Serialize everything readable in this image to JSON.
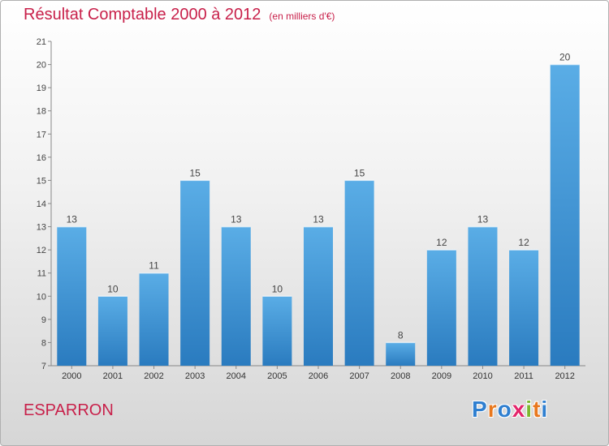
{
  "title": "Résultat Comptable 2000 à 2012",
  "subtitle": "(en milliers d'€)",
  "commune": "ESPARRON",
  "logo": {
    "letters": [
      {
        "char": "P",
        "color": "#2f7fd0"
      },
      {
        "char": "r",
        "color": "#e8781e"
      },
      {
        "char": "o",
        "color": "#2f7fd0"
      },
      {
        "char": "x",
        "color": "#e3256b"
      },
      {
        "char": "i",
        "color": "#7cb82f"
      },
      {
        "char": "t",
        "color": "#e8781e"
      },
      {
        "char": "i",
        "color": "#2f7fd0"
      }
    ]
  },
  "colors": {
    "accent": "#c8204a",
    "bar_top": "#5aade6",
    "bar_bottom": "#2a7bbf"
  },
  "chart_data": {
    "type": "bar",
    "title": "Résultat Comptable 2000 à 2012",
    "subtitle": "(en milliers d'€)",
    "xlabel": "",
    "ylabel": "",
    "categories": [
      "2000",
      "2001",
      "2002",
      "2003",
      "2004",
      "2005",
      "2006",
      "2007",
      "2008",
      "2009",
      "2010",
      "2011",
      "2012"
    ],
    "values": [
      13,
      10,
      11,
      15,
      13,
      10,
      13,
      15,
      8,
      12,
      13,
      12,
      20
    ],
    "ylim": [
      7,
      21
    ],
    "yticks": [
      7,
      8,
      9,
      10,
      11,
      12,
      13,
      14,
      15,
      16,
      17,
      18,
      19,
      20,
      21
    ],
    "grid": false,
    "data_labels": true
  }
}
